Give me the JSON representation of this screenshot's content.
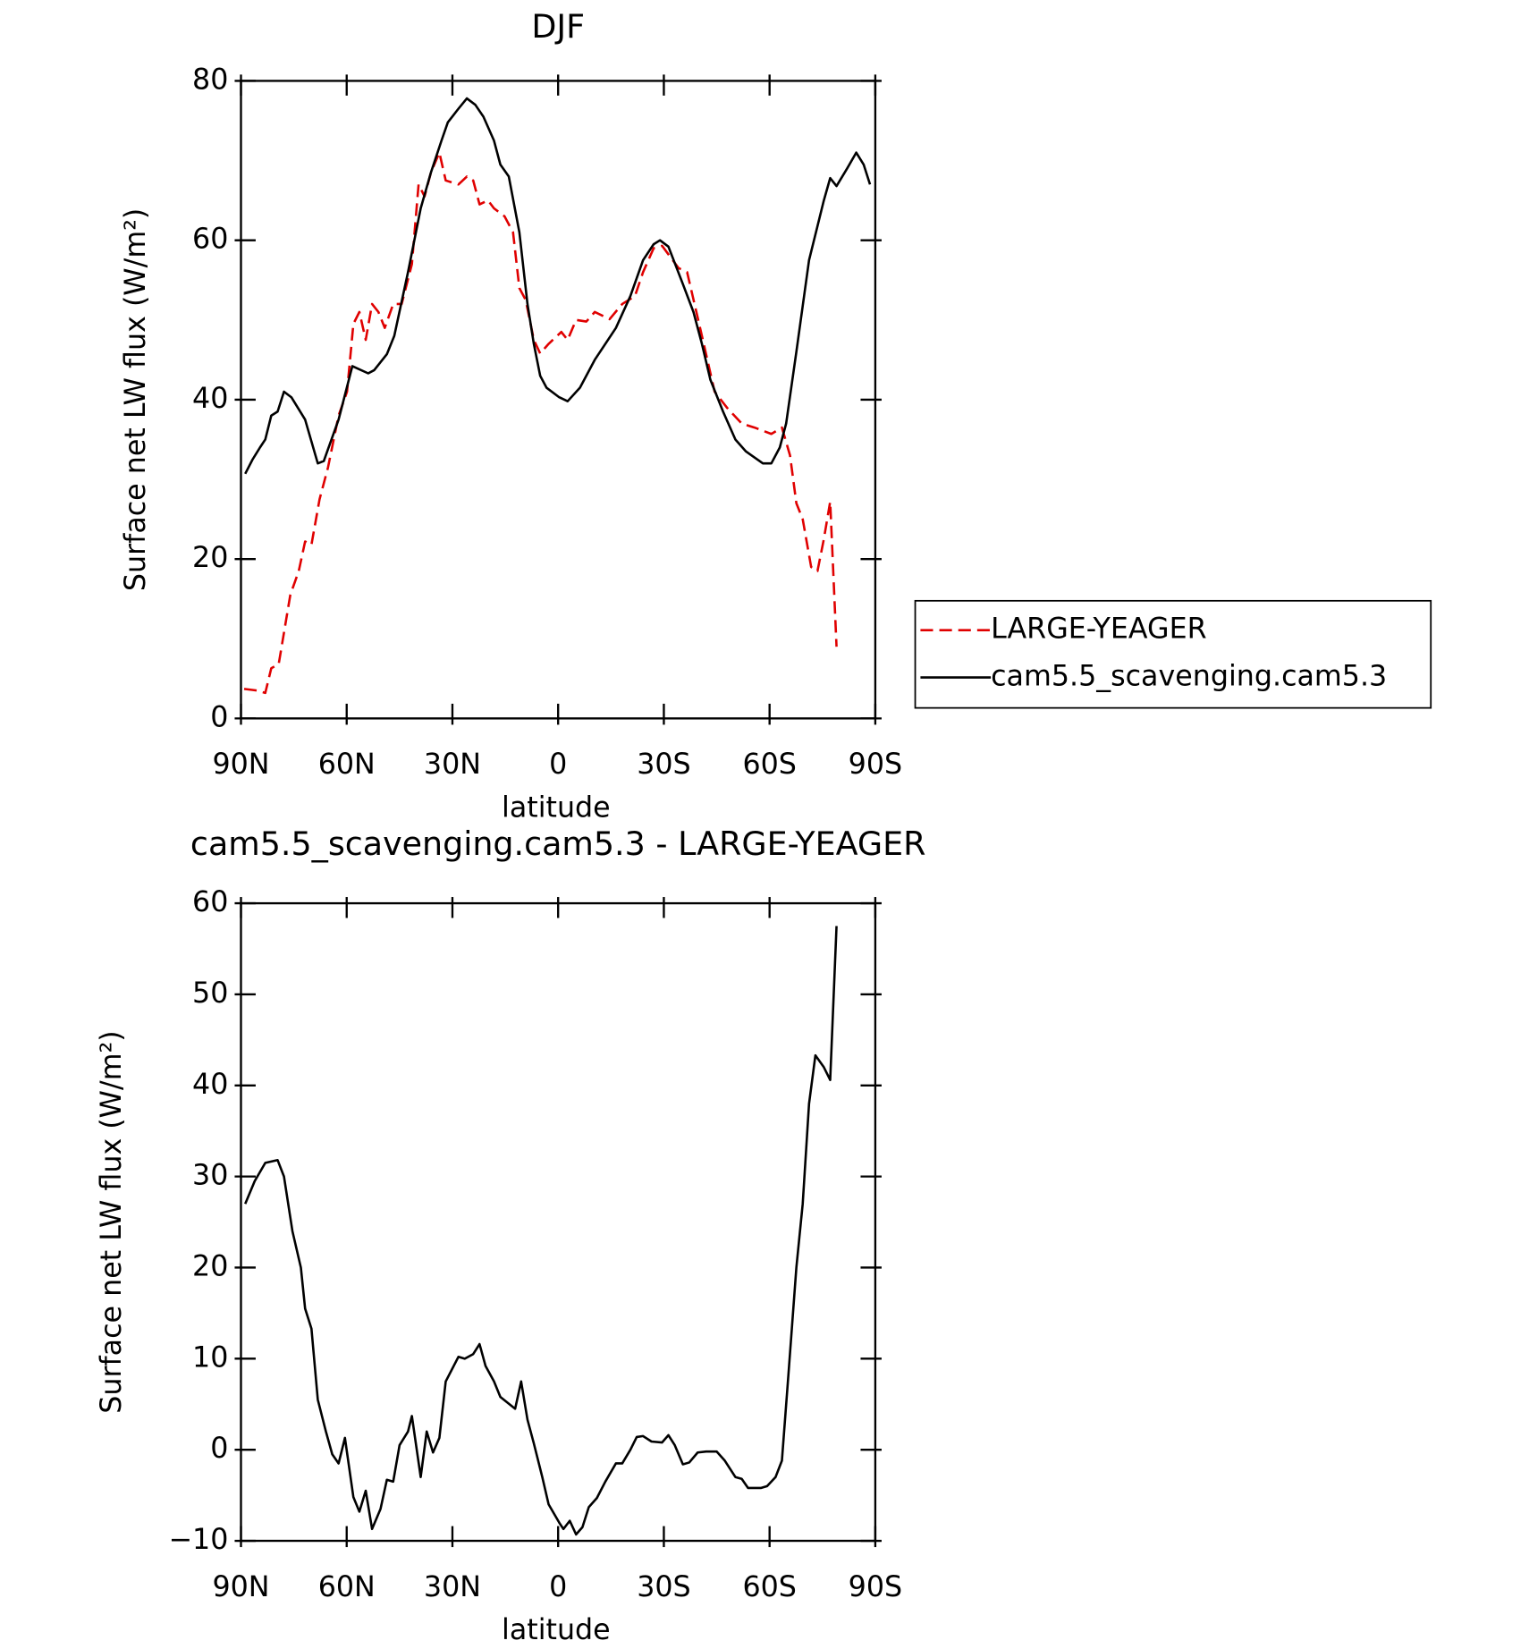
{
  "chart_data": [
    {
      "type": "line",
      "title": "DJF",
      "xlabel": "latitude",
      "ylabel": "Surface net LW flux (W/m²)",
      "xlim": [
        90,
        -90
      ],
      "xticks": [
        {
          "value": 90,
          "label": "90N"
        },
        {
          "value": 60,
          "label": "60N"
        },
        {
          "value": 30,
          "label": "30N"
        },
        0,
        {
          "value": -30,
          "label": "30S"
        },
        {
          "value": -60,
          "label": "60S"
        },
        {
          "value": -90,
          "label": "90S"
        }
      ],
      "ylim": [
        0,
        80
      ],
      "yticks": [
        0,
        20,
        40,
        60,
        80
      ],
      "legend": "outside right",
      "series": [
        {
          "name": "LARGE-YEAGER",
          "color": "#e00000",
          "line_style": "dashed",
          "x": [
            89.1,
            85.5,
            83.1,
            81.4,
            79.3,
            76.0,
            73.6,
            71.8,
            70.0,
            67.7,
            65.3,
            62.3,
            59.9,
            58.1,
            56.4,
            54.6,
            52.8,
            51.0,
            49.2,
            46.8,
            44.4,
            41.5,
            39.6,
            37.9,
            36.1,
            33.7,
            31.9,
            28.3,
            25.9,
            24.1,
            22.3,
            19.9,
            18.2,
            15.2,
            12.8,
            11.0,
            9.2,
            6.9,
            5.1,
            2.7,
            -0.9,
            -2.7,
            -5.1,
            -8.0,
            -10.4,
            -14.6,
            -18.2,
            -21.8,
            -24.1,
            -27.1,
            -29.5,
            -34.2,
            -36.6,
            -40.8,
            -44.4,
            -47.9,
            -52.1,
            -55.7,
            -60.5,
            -63.5,
            -65.8,
            -67.6,
            -69.4,
            -71.8,
            -73.6,
            -75.4,
            -77.2,
            -79.0
          ],
          "values": [
            3.7,
            3.5,
            3.2,
            6.3,
            6.8,
            15.5,
            18.5,
            22.2,
            21.8,
            27.5,
            31.5,
            38,
            41,
            49.5,
            51,
            47.5,
            52,
            51,
            49,
            52,
            52,
            57,
            67,
            65.5,
            68.5,
            71,
            67.5,
            67,
            68,
            67.5,
            64.5,
            65,
            64,
            63,
            61,
            54,
            52.5,
            47.5,
            45.8,
            47,
            48.5,
            47.5,
            50,
            49.8,
            51,
            50.1,
            52,
            53,
            56,
            59,
            59.3,
            56.5,
            56,
            48,
            41,
            39,
            37,
            36.5,
            35.7,
            36.5,
            33,
            27,
            25,
            19,
            18.5,
            22.5,
            27.2,
            9
          ]
        },
        {
          "name": "cam5.5_scavenging.cam5.3",
          "color": "#000000",
          "line_style": "solid",
          "x": [
            88.8,
            86.7,
            84.6,
            83.1,
            81.4,
            79.6,
            77.8,
            75.7,
            71.8,
            68.2,
            66.5,
            62.3,
            58.4,
            53.9,
            52.2,
            48.6,
            46.5,
            42.6,
            39.0,
            36.1,
            33.1,
            31.3,
            28.3,
            25.9,
            23.5,
            21.2,
            18.2,
            16.4,
            14.0,
            11.0,
            8.7,
            6.9,
            5.1,
            3.3,
            -0.3,
            -2.7,
            -6.2,
            -10.4,
            -16.4,
            -20.5,
            -24.1,
            -27.1,
            -28.9,
            -31.3,
            -35.4,
            -38.4,
            -40.8,
            -43.2,
            -46.8,
            -50.3,
            -53.3,
            -58.1,
            -60.5,
            -62.9,
            -64.7,
            -67.6,
            -71.2,
            -75.4,
            -77.2,
            -79.0,
            -82.0,
            -84.6,
            -86.7,
            -88.5
          ],
          "values": [
            30.7,
            32.5,
            34,
            35,
            38,
            38.5,
            41,
            40.3,
            37.5,
            32,
            32.3,
            37.5,
            44.2,
            43.3,
            43.7,
            45.7,
            48,
            56,
            64,
            68.5,
            72.5,
            74.8,
            76.5,
            77.8,
            77,
            75.5,
            72.5,
            69.5,
            68,
            61,
            52,
            47,
            43,
            41.5,
            40.3,
            39.8,
            41.5,
            45,
            49,
            53,
            57.5,
            59.5,
            60,
            59.2,
            54.5,
            51,
            47,
            42.5,
            38.5,
            35,
            33.5,
            32,
            32,
            34,
            37,
            46,
            57.5,
            65,
            67.8,
            66.8,
            69,
            71,
            69.5,
            67
          ]
        }
      ]
    },
    {
      "type": "line",
      "title": "cam5.5_scavenging.cam5.3 - LARGE-YEAGER",
      "xlabel": "latitude",
      "ylabel": "Surface net LW flux (W/m²)",
      "xlim": [
        90,
        -90
      ],
      "xticks": [
        {
          "value": 90,
          "label": "90N"
        },
        {
          "value": 60,
          "label": "60N"
        },
        {
          "value": 30,
          "label": "30N"
        },
        0,
        {
          "value": -30,
          "label": "30S"
        },
        {
          "value": -60,
          "label": "60S"
        },
        {
          "value": -90,
          "label": "90S"
        }
      ],
      "ylim": [
        -10,
        60
      ],
      "yticks": [
        {
          "value": -10,
          "label": "−10"
        },
        0,
        10,
        20,
        30,
        40,
        50,
        60
      ],
      "series": [
        {
          "color": "#000000",
          "line_style": "solid",
          "x": [
            88.8,
            86.1,
            83.1,
            79.6,
            77.8,
            75.4,
            73.0,
            71.8,
            70.0,
            68.2,
            65.9,
            64.1,
            62.3,
            60.5,
            58.1,
            56.4,
            54.6,
            52.8,
            50.4,
            48.6,
            46.8,
            45.0,
            42.6,
            41.5,
            39.0,
            37.3,
            35.5,
            33.7,
            31.9,
            28.3,
            26.5,
            24.1,
            22.3,
            20.6,
            18.2,
            16.4,
            12.2,
            10.5,
            8.7,
            6.9,
            4.5,
            2.7,
            -0.3,
            -1.5,
            -3.3,
            -5.1,
            -6.9,
            -8.7,
            -11.0,
            -13.4,
            -16.4,
            -18.2,
            -20.5,
            -22.3,
            -24.1,
            -26.5,
            -29.5,
            -31.3,
            -33.1,
            -35.4,
            -37.2,
            -39.6,
            -42.0,
            -45.0,
            -47.3,
            -50.3,
            -52.1,
            -53.9,
            -57.5,
            -59.3,
            -61.7,
            -63.5,
            -65.3,
            -67.6,
            -69.4,
            -71.2,
            -73.0,
            -75.4,
            -77.2,
            -79.0
          ],
          "values": [
            27,
            29.5,
            31.5,
            31.8,
            30,
            24,
            20,
            15.5,
            13.3,
            5.5,
            2,
            -0.5,
            -1.5,
            1.3,
            -5.2,
            -6.8,
            -4.5,
            -8.7,
            -6.5,
            -3.3,
            -3.5,
            0.5,
            2,
            3.7,
            -3,
            2,
            -0.3,
            1.3,
            7.5,
            10.2,
            10,
            10.5,
            11.6,
            9.2,
            7.5,
            5.8,
            4.5,
            7.5,
            3.3,
            0.7,
            -3,
            -6,
            -8,
            -8.7,
            -7.8,
            -9.3,
            -8.5,
            -6.3,
            -5.3,
            -3.5,
            -1.5,
            -1.5,
            0,
            1.4,
            1.5,
            0.9,
            0.8,
            1.6,
            0.5,
            -1.6,
            -1.4,
            -0.3,
            -0.2,
            -0.2,
            -1.2,
            -3,
            -3.2,
            -4.2,
            -4.2,
            -4,
            -3,
            -1.2,
            8,
            20,
            27,
            38,
            43.3,
            42,
            40.6,
            57.5
          ]
        }
      ]
    }
  ]
}
